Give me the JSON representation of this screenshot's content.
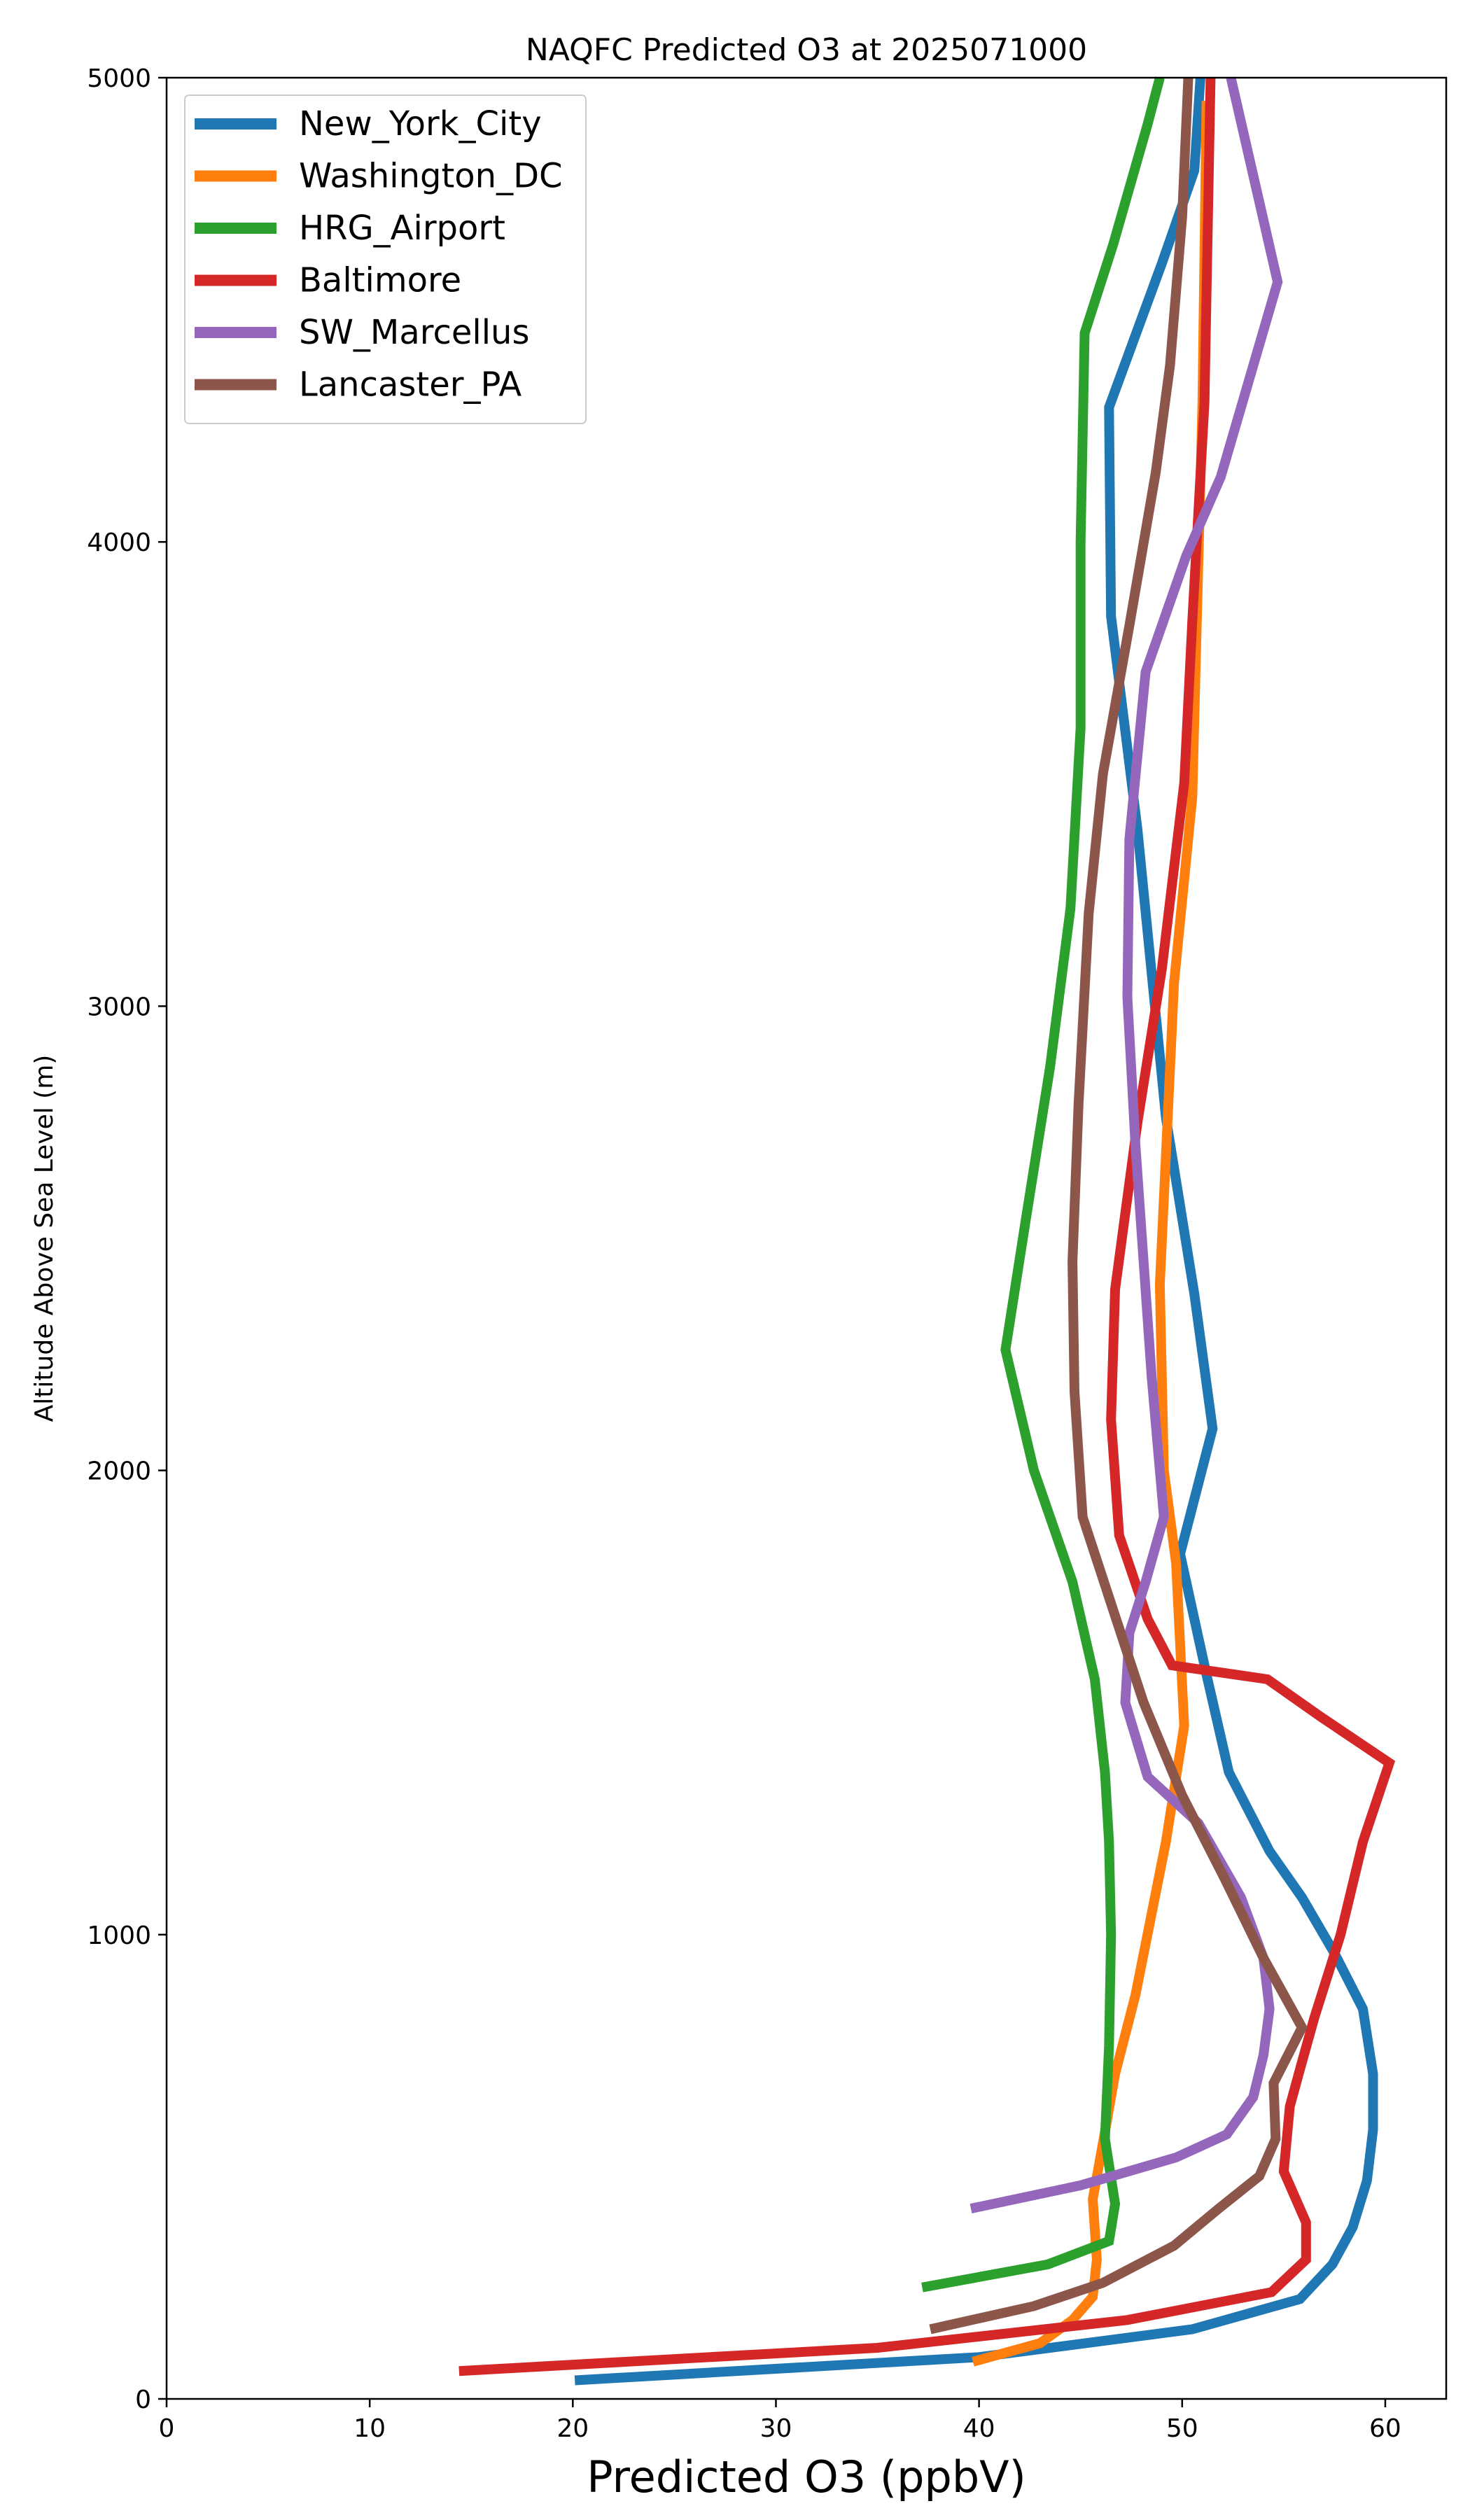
{
  "chart_data": {
    "type": "line",
    "title": "NAQFC Predicted O3 at 2025071000",
    "xlabel": "Predicted O3 (ppbV)",
    "ylabel": "Altitude Above Sea Level (m)",
    "xlim": [
      0,
      63
    ],
    "ylim": [
      0,
      5000
    ],
    "xticks": [
      0,
      10,
      20,
      30,
      40,
      50,
      60
    ],
    "yticks": [
      0,
      1000,
      2000,
      3000,
      4000,
      5000
    ],
    "legend_position": "top-left",
    "grid": false,
    "series": [
      {
        "name": "New_York_City",
        "color": "#1f77b4",
        "points": [
          [
            20.1,
            40
          ],
          [
            40,
            90
          ],
          [
            50.5,
            150
          ],
          [
            55.8,
            215
          ],
          [
            57.4,
            290
          ],
          [
            58.4,
            370
          ],
          [
            59.1,
            470
          ],
          [
            59.4,
            580
          ],
          [
            59.4,
            700
          ],
          [
            58.9,
            840
          ],
          [
            57.5,
            960
          ],
          [
            55.9,
            1080
          ],
          [
            54.3,
            1180
          ],
          [
            52.3,
            1350
          ],
          [
            51.2,
            1560
          ],
          [
            49.9,
            1820
          ],
          [
            51.5,
            2090
          ],
          [
            50.6,
            2380
          ],
          [
            49.2,
            2760
          ],
          [
            47.8,
            3380
          ],
          [
            46.5,
            3840
          ],
          [
            46.4,
            4290
          ],
          [
            49,
            4600
          ],
          [
            50.6,
            4800
          ],
          [
            50.9,
            5000
          ]
        ]
      },
      {
        "name": "Washington_DC",
        "color": "#ff7f0e",
        "points": [
          [
            39.7,
            80
          ],
          [
            43,
            120
          ],
          [
            44.6,
            170
          ],
          [
            45.6,
            220
          ],
          [
            45.8,
            300
          ],
          [
            45.6,
            430
          ],
          [
            46.3,
            600
          ],
          [
            46.7,
            700
          ],
          [
            47.7,
            870
          ],
          [
            49.2,
            1200
          ],
          [
            50.1,
            1450
          ],
          [
            49.7,
            1800
          ],
          [
            49.1,
            2000
          ],
          [
            48.9,
            2400
          ],
          [
            49.6,
            3050
          ],
          [
            50.5,
            3450
          ],
          [
            51.0,
            4300
          ],
          [
            51.2,
            4950
          ]
        ]
      },
      {
        "name": "HRG_Airport",
        "color": "#2ca02c",
        "points": [
          [
            37.2,
            240
          ],
          [
            43.4,
            290
          ],
          [
            46.4,
            340
          ],
          [
            46.7,
            420
          ],
          [
            46.2,
            560
          ],
          [
            46.4,
            760
          ],
          [
            46.5,
            1000
          ],
          [
            46.4,
            1200
          ],
          [
            46.2,
            1350
          ],
          [
            45.7,
            1550
          ],
          [
            44.6,
            1760
          ],
          [
            42.7,
            2000
          ],
          [
            41.3,
            2260
          ],
          [
            42.3,
            2540
          ],
          [
            43.5,
            2870
          ],
          [
            44.5,
            3210
          ],
          [
            45.0,
            3600
          ],
          [
            45.0,
            4000
          ],
          [
            45.2,
            4450
          ],
          [
            46.6,
            4640
          ],
          [
            48.3,
            4900
          ],
          [
            48.9,
            5000
          ]
        ]
      },
      {
        "name": "Baltimore",
        "color": "#d62728",
        "points": [
          [
            14.4,
            60
          ],
          [
            35,
            110
          ],
          [
            47.3,
            170
          ],
          [
            54.4,
            230
          ],
          [
            56.1,
            300
          ],
          [
            56.1,
            380
          ],
          [
            55,
            490
          ],
          [
            55.3,
            630
          ],
          [
            55.8,
            710
          ],
          [
            56.5,
            820
          ],
          [
            57.8,
            1000
          ],
          [
            58.9,
            1200
          ],
          [
            60.2,
            1370
          ],
          [
            56.8,
            1470
          ],
          [
            54.2,
            1550
          ],
          [
            49.5,
            1580
          ],
          [
            48.3,
            1680
          ],
          [
            46.9,
            1860
          ],
          [
            46.5,
            2110
          ],
          [
            46.7,
            2390
          ],
          [
            47.8,
            2750
          ],
          [
            49.0,
            3080
          ],
          [
            50.1,
            3480
          ],
          [
            50.5,
            3830
          ],
          [
            51.1,
            4300
          ],
          [
            51.4,
            5000
          ]
        ]
      },
      {
        "name": "SW_Marcellus",
        "color": "#9467bd",
        "points": [
          [
            39.6,
            410
          ],
          [
            45.0,
            460
          ],
          [
            49.7,
            520
          ],
          [
            52.2,
            570
          ],
          [
            53.5,
            650
          ],
          [
            54.0,
            740
          ],
          [
            54.3,
            840
          ],
          [
            54.0,
            950
          ],
          [
            52.9,
            1080
          ],
          [
            50.8,
            1240
          ],
          [
            48.3,
            1340
          ],
          [
            47.2,
            1500
          ],
          [
            47.4,
            1650
          ],
          [
            48.2,
            1760
          ],
          [
            49.1,
            1900
          ],
          [
            48.5,
            2200
          ],
          [
            47.7,
            2700
          ],
          [
            47.3,
            3020
          ],
          [
            47.4,
            3360
          ],
          [
            48.2,
            3720
          ],
          [
            50.2,
            3970
          ],
          [
            51.9,
            4140
          ],
          [
            54.7,
            4560
          ],
          [
            52.4,
            5000
          ]
        ]
      },
      {
        "name": "Lancaster_PA",
        "color": "#8c564b",
        "points": [
          [
            37.6,
            150
          ],
          [
            42.7,
            200
          ],
          [
            46.1,
            250
          ],
          [
            49.6,
            330
          ],
          [
            51.8,
            410
          ],
          [
            53.8,
            480
          ],
          [
            54.6,
            560
          ],
          [
            54.5,
            680
          ],
          [
            55.9,
            800
          ],
          [
            54.0,
            950
          ],
          [
            52.1,
            1120
          ],
          [
            50.0,
            1300
          ],
          [
            48.1,
            1500
          ],
          [
            46.6,
            1700
          ],
          [
            45.1,
            1900
          ],
          [
            44.7,
            2170
          ],
          [
            44.6,
            2450
          ],
          [
            44.9,
            2790
          ],
          [
            45.4,
            3200
          ],
          [
            46.1,
            3500
          ],
          [
            47.4,
            3820
          ],
          [
            48.7,
            4150
          ],
          [
            49.4,
            4380
          ],
          [
            50.0,
            4700
          ],
          [
            50.3,
            5000
          ]
        ]
      }
    ]
  }
}
